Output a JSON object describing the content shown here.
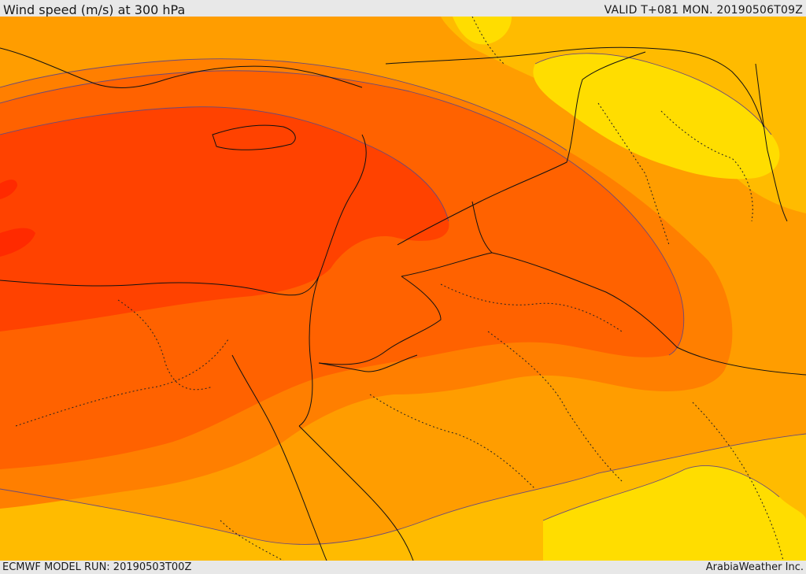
{
  "header": {
    "title": "Wind speed (m/s) at 300 hPa",
    "valid_time": "VALID T+081 MON. 20190506T09Z"
  },
  "footer": {
    "model_run": "ECMWF MODEL RUN: 20190503T00Z",
    "credit": "ArabiaWeather Inc."
  },
  "map": {
    "variable": "wind speed",
    "units": "m/s",
    "level_hpa": 300,
    "colors": {
      "band_1": "#ffdd00",
      "band_2": "#ffbb00",
      "band_3": "#ff9d00",
      "band_4": "#ff7f00",
      "band_5": "#ff6200",
      "band_6": "#ff4200",
      "band_7": "#ff2a00",
      "contour": "#6a4a7a",
      "coastline": "#111111",
      "border_dotted": "#222222"
    }
  }
}
